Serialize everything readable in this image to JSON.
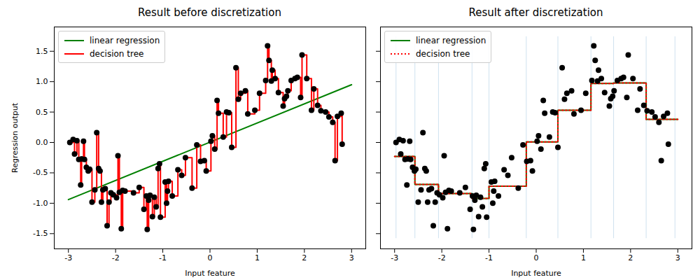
{
  "chart_data": [
    {
      "type": "line",
      "title": "Result before discretization",
      "x_label": "Input feature",
      "y_label": "Regression output",
      "xlim": [
        -3.3,
        3.3
      ],
      "xticks": [
        -3,
        -2,
        -1,
        0,
        1,
        2,
        3
      ],
      "ylim": [
        -1.75,
        1.9
      ],
      "yticks": [
        -1.5,
        {
          "value": -1,
          "label": "-1.0"
        },
        -0.5,
        {
          "value": 0,
          "label": "0.0"
        },
        0.5,
        {
          "value": 1,
          "label": "1.0"
        },
        1.5
      ],
      "legend": "upper left",
      "series": [
        {
          "name": "linear regression",
          "type": "line",
          "color": "#008000",
          "line_style": "solid",
          "x": [
            -3,
            3
          ],
          "values": [
            -0.94,
            0.95
          ]
        },
        {
          "name": "decision tree",
          "type": "step",
          "color": "#ff0000",
          "line_style": "solid",
          "x": [
            -2.97,
            -2.9,
            -2.87,
            -2.82,
            -2.78,
            -2.74,
            -2.72,
            -2.68,
            -2.66,
            -2.62,
            -2.58,
            -2.55,
            -2.5,
            -2.44,
            -2.4,
            -2.36,
            -2.33,
            -2.3,
            -2.27,
            -2.22,
            -2.18,
            -2.14,
            -2.1,
            -2.05,
            -1.98,
            -1.95,
            -1.92,
            -1.88,
            -1.85,
            -1.8,
            -1.62,
            -1.5,
            -1.4,
            -1.35,
            -1.33,
            -1.3,
            -1.27,
            -1.22,
            -1.18,
            -1.14,
            -1.1,
            -1.07,
            -1.05,
            -0.95,
            -0.92,
            -0.9,
            -0.88,
            -0.8,
            -0.68,
            -0.6,
            -0.52,
            -0.38,
            -0.28,
            -0.2,
            -0.12,
            -0.08,
            0.02,
            0.05,
            0.1,
            0.15,
            0.18,
            0.28,
            0.35,
            0.4,
            0.46,
            0.55,
            0.6,
            0.65,
            0.75,
            0.8,
            0.95,
            1.05,
            1.18,
            1.22,
            1.25,
            1.3,
            1.32,
            1.38,
            1.45,
            1.55,
            1.58,
            1.62,
            1.65,
            1.72,
            1.8,
            1.85,
            1.92,
            1.95,
            2.05,
            2.15,
            2.2,
            2.28,
            2.35,
            2.45,
            2.52,
            2.6,
            2.65,
            2.7,
            2.78,
            2.8
          ],
          "values": [
            0.0,
            0.05,
            -0.19,
            0.03,
            -0.28,
            -0.7,
            -0.27,
            0.02,
            -0.28,
            -0.41,
            -0.47,
            -0.44,
            -0.98,
            -0.78,
            0.16,
            -0.43,
            -0.47,
            -0.98,
            -0.78,
            -0.76,
            -1.37,
            -0.98,
            -0.83,
            -0.86,
            -0.91,
            -0.22,
            -0.82,
            -1.42,
            -0.79,
            -0.8,
            -0.83,
            -0.74,
            -1.1,
            -0.88,
            -1.43,
            -0.95,
            -0.87,
            -1.22,
            -0.9,
            -1.06,
            -0.43,
            -0.35,
            -1.23,
            -0.65,
            -1.0,
            -0.8,
            -0.64,
            -0.88,
            -0.45,
            -0.54,
            -0.25,
            -0.75,
            -0.04,
            -0.31,
            -0.3,
            -0.47,
            0.02,
            0.11,
            -0.11,
            0.69,
            0.48,
            0.09,
            0.5,
            0.49,
            -0.08,
            1.23,
            0.71,
            0.81,
            0.85,
            0.47,
            0.53,
            0.81,
            1.02,
            1.59,
            1.35,
            1.01,
            1.19,
            1.05,
            0.82,
            0.6,
            0.72,
            0.76,
            0.85,
            1.02,
            1.05,
            1.07,
            0.74,
            1.44,
            1.05,
            0.53,
            0.88,
            0.61,
            0.52,
            0.5,
            0.42,
            0.33,
            -0.3,
            0.43,
            0.48,
            -0.03
          ]
        },
        {
          "type": "scatter",
          "color": "#000000",
          "marker": "circle",
          "x": [
            -2.97,
            -2.9,
            -2.87,
            -2.82,
            -2.78,
            -2.74,
            -2.72,
            -2.68,
            -2.66,
            -2.62,
            -2.58,
            -2.55,
            -2.5,
            -2.44,
            -2.4,
            -2.36,
            -2.33,
            -2.3,
            -2.27,
            -2.22,
            -2.18,
            -2.14,
            -2.1,
            -2.05,
            -1.98,
            -1.95,
            -1.92,
            -1.88,
            -1.85,
            -1.8,
            -1.62,
            -1.5,
            -1.4,
            -1.35,
            -1.33,
            -1.3,
            -1.27,
            -1.22,
            -1.18,
            -1.14,
            -1.1,
            -1.07,
            -1.05,
            -0.95,
            -0.92,
            -0.9,
            -0.88,
            -0.8,
            -0.68,
            -0.6,
            -0.52,
            -0.38,
            -0.28,
            -0.2,
            -0.12,
            -0.08,
            0.02,
            0.05,
            0.1,
            0.15,
            0.18,
            0.28,
            0.35,
            0.4,
            0.46,
            0.55,
            0.6,
            0.65,
            0.75,
            0.8,
            0.95,
            1.05,
            1.18,
            1.22,
            1.25,
            1.3,
            1.32,
            1.38,
            1.45,
            1.55,
            1.58,
            1.62,
            1.65,
            1.72,
            1.8,
            1.85,
            1.92,
            1.95,
            2.05,
            2.15,
            2.2,
            2.28,
            2.35,
            2.45,
            2.52,
            2.6,
            2.65,
            2.7,
            2.78,
            2.8
          ],
          "values": [
            0.0,
            0.05,
            -0.19,
            0.03,
            -0.28,
            -0.7,
            -0.27,
            0.02,
            -0.28,
            -0.41,
            -0.47,
            -0.44,
            -0.98,
            -0.78,
            0.16,
            -0.43,
            -0.47,
            -0.98,
            -0.78,
            -0.76,
            -1.37,
            -0.98,
            -0.83,
            -0.86,
            -0.91,
            -0.22,
            -0.82,
            -1.42,
            -0.79,
            -0.8,
            -0.83,
            -0.74,
            -1.1,
            -0.88,
            -1.43,
            -0.95,
            -0.87,
            -1.22,
            -0.9,
            -1.06,
            -0.43,
            -0.35,
            -1.23,
            -0.65,
            -1.0,
            -0.8,
            -0.64,
            -0.88,
            -0.45,
            -0.54,
            -0.25,
            -0.75,
            -0.04,
            -0.31,
            -0.3,
            -0.47,
            0.02,
            0.11,
            -0.11,
            0.69,
            0.48,
            0.09,
            0.5,
            0.49,
            -0.08,
            1.23,
            0.71,
            0.81,
            0.85,
            0.47,
            0.53,
            0.81,
            1.02,
            1.59,
            1.35,
            1.01,
            1.19,
            1.05,
            0.82,
            0.6,
            0.72,
            0.76,
            0.85,
            1.02,
            1.05,
            1.07,
            0.74,
            1.44,
            1.05,
            0.53,
            0.88,
            0.61,
            0.52,
            0.5,
            0.42,
            0.33,
            -0.3,
            0.43,
            0.48,
            -0.03
          ]
        }
      ]
    },
    {
      "type": "line",
      "title": "Result after discretization",
      "x_label": "Input feature",
      "xlim": [
        -3.3,
        3.3
      ],
      "xticks": [
        -3,
        -2,
        -1,
        0,
        1,
        2,
        3
      ],
      "ylim": [
        -1.75,
        1.9
      ],
      "yticks": [
        -1.5,
        {
          "value": -1,
          "label": "-1.0"
        },
        -0.5,
        {
          "value": 0,
          "label": "0.0"
        },
        0.5,
        {
          "value": 1,
          "label": "1.0"
        },
        1.5
      ],
      "tick_labels": "x",
      "legend": "upper left",
      "bin_edges": [
        -2.97,
        -2.57,
        -2.07,
        -1.36,
        -1.0,
        -0.21,
        0.46,
        1.16,
        1.64,
        2.33,
        2.94
      ],
      "bin_edges_span": [
        -1.58,
        1.74
      ],
      "series": [
        {
          "name": "linear regression",
          "type": "step",
          "color": "#008000",
          "line_style": "solid",
          "x": [
            -3,
            -2.57,
            -2.07,
            -1.36,
            -1.0,
            -0.21,
            0.46,
            1.16,
            1.64,
            2.33,
            3
          ],
          "values": [
            -0.23,
            -0.69,
            -0.84,
            -0.92,
            -0.72,
            0.01,
            0.53,
            0.97,
            0.98,
            0.38,
            0.38
          ]
        },
        {
          "name": "decision tree",
          "type": "step",
          "color": "#ff0000",
          "line_style": "dotted",
          "x": [
            -3,
            -2.57,
            -2.07,
            -1.36,
            -1.0,
            -0.21,
            0.46,
            1.16,
            1.64,
            2.33,
            3
          ],
          "values": [
            -0.23,
            -0.69,
            -0.84,
            -0.92,
            -0.72,
            0.01,
            0.53,
            0.97,
            0.98,
            0.38,
            0.38
          ]
        },
        {
          "type": "scatter",
          "color": "#000000",
          "marker": "circle",
          "x": [
            -2.97,
            -2.9,
            -2.87,
            -2.82,
            -2.78,
            -2.74,
            -2.72,
            -2.68,
            -2.66,
            -2.62,
            -2.58,
            -2.55,
            -2.5,
            -2.44,
            -2.4,
            -2.36,
            -2.33,
            -2.3,
            -2.27,
            -2.22,
            -2.18,
            -2.14,
            -2.1,
            -2.05,
            -1.98,
            -1.95,
            -1.92,
            -1.88,
            -1.85,
            -1.8,
            -1.62,
            -1.5,
            -1.4,
            -1.35,
            -1.33,
            -1.3,
            -1.27,
            -1.22,
            -1.18,
            -1.14,
            -1.1,
            -1.07,
            -1.05,
            -0.95,
            -0.92,
            -0.9,
            -0.88,
            -0.8,
            -0.68,
            -0.6,
            -0.52,
            -0.38,
            -0.28,
            -0.2,
            -0.12,
            -0.08,
            0.02,
            0.05,
            0.1,
            0.15,
            0.18,
            0.28,
            0.35,
            0.4,
            0.46,
            0.55,
            0.6,
            0.65,
            0.75,
            0.8,
            0.95,
            1.05,
            1.18,
            1.22,
            1.25,
            1.3,
            1.32,
            1.38,
            1.45,
            1.55,
            1.58,
            1.62,
            1.65,
            1.72,
            1.8,
            1.85,
            1.92,
            1.95,
            2.05,
            2.15,
            2.2,
            2.28,
            2.35,
            2.45,
            2.52,
            2.6,
            2.65,
            2.7,
            2.78,
            2.8
          ],
          "values": [
            0.0,
            0.05,
            -0.19,
            0.03,
            -0.28,
            -0.7,
            -0.27,
            0.02,
            -0.28,
            -0.41,
            -0.47,
            -0.44,
            -0.98,
            -0.78,
            0.16,
            -0.43,
            -0.47,
            -0.98,
            -0.78,
            -0.76,
            -1.37,
            -0.98,
            -0.83,
            -0.86,
            -0.91,
            -0.22,
            -0.82,
            -1.42,
            -0.79,
            -0.8,
            -0.83,
            -0.74,
            -1.1,
            -0.88,
            -1.43,
            -0.95,
            -0.87,
            -1.22,
            -0.9,
            -1.06,
            -0.43,
            -0.35,
            -1.23,
            -0.65,
            -1.0,
            -0.8,
            -0.64,
            -0.88,
            -0.45,
            -0.54,
            -0.25,
            -0.75,
            -0.04,
            -0.31,
            -0.3,
            -0.47,
            0.02,
            0.11,
            -0.11,
            0.69,
            0.48,
            0.09,
            0.5,
            0.49,
            -0.08,
            1.23,
            0.71,
            0.81,
            0.85,
            0.47,
            0.53,
            0.81,
            1.02,
            1.59,
            1.35,
            1.01,
            1.19,
            1.05,
            0.82,
            0.6,
            0.72,
            0.76,
            0.85,
            1.02,
            1.05,
            1.07,
            0.74,
            1.44,
            1.05,
            0.53,
            0.88,
            0.61,
            0.52,
            0.5,
            0.42,
            0.33,
            -0.3,
            0.43,
            0.48,
            -0.03
          ]
        }
      ]
    }
  ]
}
